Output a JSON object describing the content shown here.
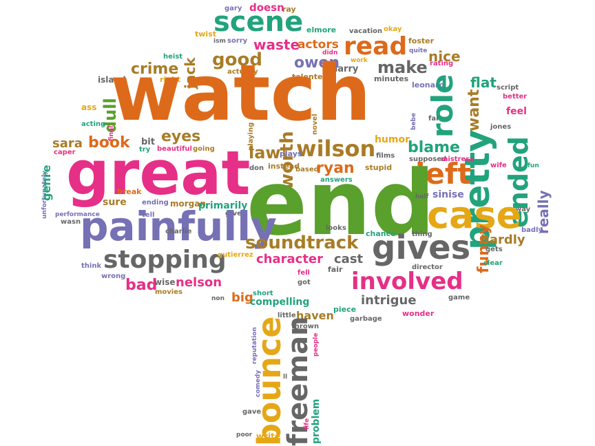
{
  "palette": {
    "orange": "#dd6a1a",
    "pink": "#e62f86",
    "green": "#5aa02c",
    "teal": "#21a37c",
    "purple": "#7670b5",
    "gold": "#e5a716",
    "brown": "#a87c26",
    "gray": "#666666"
  },
  "words": [
    {
      "text": "gary",
      "color": "purple"
    },
    {
      "text": "doesn",
      "color": "pink"
    },
    {
      "text": "ray",
      "color": "brown"
    },
    {
      "text": "twist",
      "color": "gold"
    },
    {
      "text": "elmore",
      "color": "teal"
    },
    {
      "text": "vacation",
      "color": "gray"
    },
    {
      "text": "okay",
      "color": "gold"
    },
    {
      "text": "foster",
      "color": "brown"
    },
    {
      "text": "ism",
      "color": "gray"
    },
    {
      "text": "sorry",
      "color": "purple"
    },
    {
      "text": "scene",
      "color": "teal"
    },
    {
      "text": "didn",
      "color": "pink"
    },
    {
      "text": "quite",
      "color": "purple"
    },
    {
      "text": "read",
      "color": "orange"
    },
    {
      "text": "heist",
      "color": "teal"
    },
    {
      "text": "waste",
      "color": "pink"
    },
    {
      "text": "actors",
      "color": "orange"
    },
    {
      "text": "work",
      "color": "gold"
    },
    {
      "text": "nice",
      "color": "brown"
    },
    {
      "text": "rating",
      "color": "pink"
    },
    {
      "text": "jack",
      "color": "brown"
    },
    {
      "text": "good",
      "color": "brown"
    },
    {
      "text": "owen",
      "color": "purple"
    },
    {
      "text": "crime",
      "color": "brown"
    },
    {
      "text": "island",
      "color": "gray"
    },
    {
      "text": "actually",
      "color": "brown"
    },
    {
      "text": "harry",
      "color": "gray"
    },
    {
      "text": "talented",
      "color": "brown"
    },
    {
      "text": "make",
      "color": "gray"
    },
    {
      "text": "minutes",
      "color": "gray"
    },
    {
      "text": "leonard",
      "color": "purple"
    },
    {
      "text": "right",
      "color": "gold"
    },
    {
      "text": "watch",
      "color": "orange"
    },
    {
      "text": "flat",
      "color": "teal"
    },
    {
      "text": "script",
      "color": "gray"
    },
    {
      "text": "better",
      "color": "pink"
    },
    {
      "text": "ass",
      "color": "gold"
    },
    {
      "text": "role",
      "color": "teal"
    },
    {
      "text": "want",
      "color": "brown"
    },
    {
      "text": "dull",
      "color": "green"
    },
    {
      "text": "pretty",
      "color": "teal"
    },
    {
      "text": "feel",
      "color": "pink"
    },
    {
      "text": "acting",
      "color": "teal"
    },
    {
      "text": "final",
      "color": "pink"
    },
    {
      "text": "playing",
      "color": "brown"
    },
    {
      "text": "novel",
      "color": "brown"
    },
    {
      "text": "bebe",
      "color": "purple"
    },
    {
      "text": "far",
      "color": "gray"
    },
    {
      "text": "jones",
      "color": "gray"
    },
    {
      "text": "ended",
      "color": "teal"
    },
    {
      "text": "eyes",
      "color": "brown"
    },
    {
      "text": "bit",
      "color": "gray"
    },
    {
      "text": "worth",
      "color": "brown"
    },
    {
      "text": "humor",
      "color": "gold"
    },
    {
      "text": "sara",
      "color": "brown"
    },
    {
      "text": "book",
      "color": "orange"
    },
    {
      "text": "caper",
      "color": "pink"
    },
    {
      "text": "try",
      "color": "teal"
    },
    {
      "text": "beautiful",
      "color": "pink"
    },
    {
      "text": "going",
      "color": "brown"
    },
    {
      "text": "wilson",
      "color": "brown"
    },
    {
      "text": "blame",
      "color": "teal"
    },
    {
      "text": "films",
      "color": "gray"
    },
    {
      "text": "supposed",
      "color": "gray"
    },
    {
      "text": "mistress",
      "color": "pink"
    },
    {
      "text": "law",
      "color": "brown"
    },
    {
      "text": "plays",
      "color": "purple"
    },
    {
      "text": "unfortunately",
      "color": "purple"
    },
    {
      "text": "genre",
      "color": "teal"
    },
    {
      "text": "great",
      "color": "pink"
    },
    {
      "text": "don",
      "color": "gray"
    },
    {
      "text": "instead",
      "color": "brown"
    },
    {
      "text": "based",
      "color": "brown"
    },
    {
      "text": "ryan",
      "color": "orange"
    },
    {
      "text": "stupid",
      "color": "brown"
    },
    {
      "text": "left",
      "color": "orange"
    },
    {
      "text": "wife",
      "color": "pink"
    },
    {
      "text": "fun",
      "color": "teal"
    },
    {
      "text": "answers",
      "color": "teal"
    },
    {
      "text": "end",
      "color": "green"
    },
    {
      "text": "break",
      "color": "orange"
    },
    {
      "text": "sure",
      "color": "brown"
    },
    {
      "text": "ending",
      "color": "purple"
    },
    {
      "text": "morgan",
      "color": "brown"
    },
    {
      "text": "primarily",
      "color": "teal"
    },
    {
      "text": "half",
      "color": "gray"
    },
    {
      "text": "sinise",
      "color": "purple"
    },
    {
      "text": "really",
      "color": "purple"
    },
    {
      "text": "way",
      "color": "gray"
    },
    {
      "text": "performance",
      "color": "purple"
    },
    {
      "text": "wasn",
      "color": "gray"
    },
    {
      "text": "tell",
      "color": "purple"
    },
    {
      "text": "given",
      "color": "gray"
    },
    {
      "text": "case",
      "color": "gold"
    },
    {
      "text": "painfully",
      "color": "purple"
    },
    {
      "text": "looks",
      "color": "gray"
    },
    {
      "text": "badly",
      "color": "purple"
    },
    {
      "text": "charlie",
      "color": "gray"
    },
    {
      "text": "chance",
      "color": "teal"
    },
    {
      "text": "thing",
      "color": "gray"
    },
    {
      "text": "soundtrack",
      "color": "brown"
    },
    {
      "text": "funny",
      "color": "orange"
    },
    {
      "text": "hardly",
      "color": "brown"
    },
    {
      "text": "gives",
      "color": "gray"
    },
    {
      "text": "gets",
      "color": "gray"
    },
    {
      "text": "stopping",
      "color": "gray"
    },
    {
      "text": "cast",
      "color": "gray"
    },
    {
      "text": "gutierrez",
      "color": "gold"
    },
    {
      "text": "character",
      "color": "pink"
    },
    {
      "text": "think",
      "color": "purple"
    },
    {
      "text": "fair",
      "color": "gray"
    },
    {
      "text": "director",
      "color": "gray"
    },
    {
      "text": "clear",
      "color": "teal"
    },
    {
      "text": "wrong",
      "color": "purple"
    },
    {
      "text": "fell",
      "color": "pink"
    },
    {
      "text": "got",
      "color": "gray"
    },
    {
      "text": "involved",
      "color": "pink"
    },
    {
      "text": "bad",
      "color": "pink"
    },
    {
      "text": "wise",
      "color": "gray"
    },
    {
      "text": "nelson",
      "color": "pink"
    },
    {
      "text": "movies",
      "color": "brown"
    },
    {
      "text": "short",
      "color": "teal"
    },
    {
      "text": "non",
      "color": "gray"
    },
    {
      "text": "big",
      "color": "orange"
    },
    {
      "text": "compelling",
      "color": "teal"
    },
    {
      "text": "intrigue",
      "color": "gray"
    },
    {
      "text": "game",
      "color": "gray"
    },
    {
      "text": "garbage",
      "color": "gray"
    },
    {
      "text": "piece",
      "color": "teal"
    },
    {
      "text": "wonder",
      "color": "pink"
    },
    {
      "text": "little",
      "color": "gray"
    },
    {
      "text": "haven",
      "color": "brown"
    },
    {
      "text": "thrown",
      "color": "gray"
    },
    {
      "text": "reputation",
      "color": "purple"
    },
    {
      "text": "people",
      "color": "pink"
    },
    {
      "text": "bounce",
      "color": "gold"
    },
    {
      "text": "freeman",
      "color": "gray"
    },
    {
      "text": "comedy",
      "color": "purple"
    },
    {
      "text": "ll",
      "color": "gray"
    },
    {
      "text": "problem",
      "color": "teal"
    },
    {
      "text": "gave",
      "color": "gray"
    },
    {
      "text": "poor",
      "color": "gray"
    },
    {
      "text": "write",
      "color": "gold"
    },
    {
      "text": "life",
      "color": "pink"
    }
  ]
}
